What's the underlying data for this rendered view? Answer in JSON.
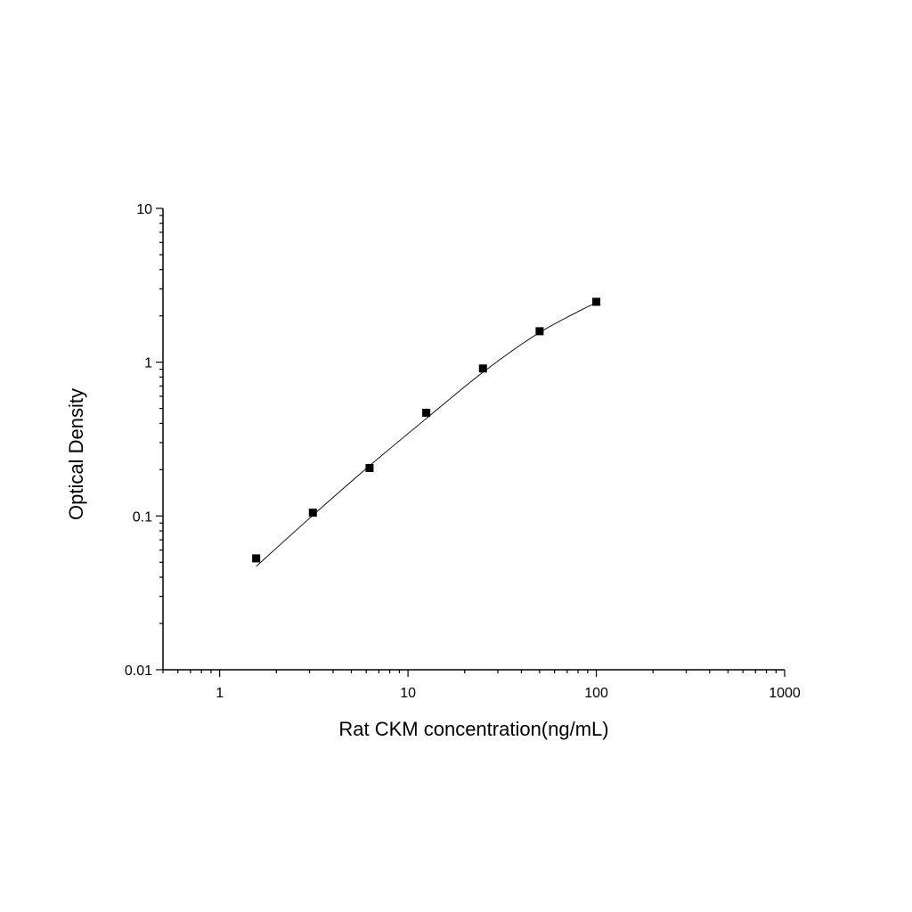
{
  "chart_data": {
    "type": "scatter",
    "title": "",
    "xlabel": "Rat CKM concentration(ng/mL)",
    "ylabel": "Optical Density",
    "xscale": "log",
    "yscale": "log",
    "xlim": [
      0.5,
      1000
    ],
    "ylim": [
      0.01,
      10
    ],
    "xticks": [
      1,
      10,
      100,
      1000
    ],
    "xtick_labels": [
      "1",
      "10",
      "100",
      "1000"
    ],
    "yticks": [
      0.01,
      0.1,
      1,
      10
    ],
    "ytick_labels": [
      "0.01",
      "0.1",
      "1",
      "10"
    ],
    "grid": false,
    "legend": "none",
    "series": [
      {
        "marker": "square",
        "color": "#000000",
        "x": [
          1.5625,
          3.125,
          6.25,
          12.5,
          25,
          50,
          100
        ],
        "y": [
          0.053,
          0.105,
          0.205,
          0.469,
          0.91,
          1.59,
          2.47
        ]
      }
    ],
    "fit_curve": {
      "color": "#000000",
      "x": [
        1.5625,
        3.125,
        6.25,
        12.5,
        25,
        50,
        100
      ],
      "y": [
        0.047,
        0.101,
        0.212,
        0.43,
        0.86,
        1.56,
        2.45
      ]
    }
  }
}
